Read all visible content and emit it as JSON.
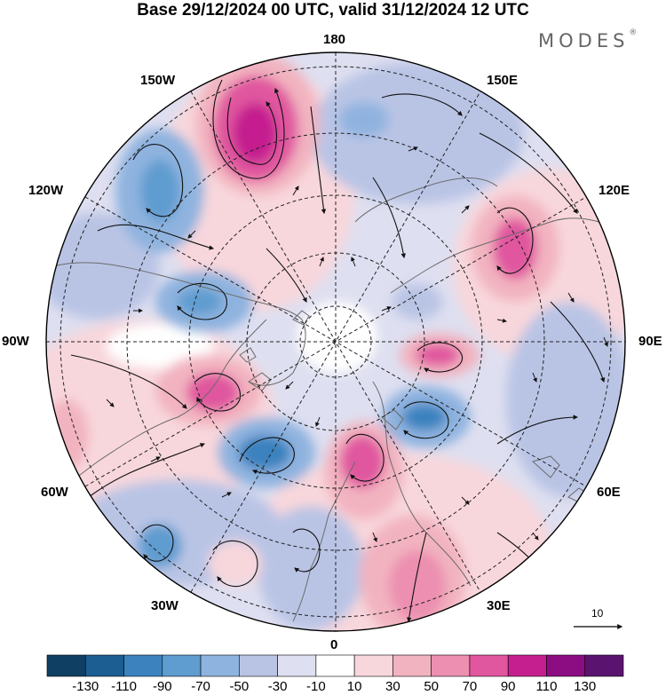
{
  "title": "Base 29/12/2024 00 UTC, valid 31/12/2024 12 UTC",
  "brand": "MODES",
  "brand_mark": "®",
  "longitude_labels": {
    "n180": "180",
    "e150": "150E",
    "e120": "120E",
    "e90": "90E",
    "e60": "60E",
    "e30": "30E",
    "n0": "0",
    "w30": "30W",
    "w60": "60W",
    "w90": "90W",
    "w120": "120W",
    "w150": "150W"
  },
  "wind_scale_label": "10",
  "colorbar": {
    "ticks": [
      "-130",
      "-110",
      "-90",
      "-70",
      "-50",
      "-30",
      "-10",
      "10",
      "30",
      "50",
      "70",
      "90",
      "110",
      "130"
    ],
    "colors": [
      "#0f3f63",
      "#1c5d92",
      "#3b82bf",
      "#5f9cd0",
      "#8fb3df",
      "#b9c4e5",
      "#dedff0",
      "#ffffff",
      "#f8d7dc",
      "#f2b3c0",
      "#ec8fb0",
      "#e0569f",
      "#c51f8f",
      "#8c0d82",
      "#5a1470"
    ]
  },
  "colors": {
    "land_line": "#6b6b6b",
    "grid_line": "#222222",
    "streamline": "#111111"
  },
  "anomaly_centers": [
    {
      "sign": "positive",
      "region": "North Pacific near 165W",
      "peak_class": "90 to 110"
    },
    {
      "sign": "negative",
      "region": "Alaska / Gulf near 125W",
      "peak_class": "-50 to -70"
    },
    {
      "sign": "negative",
      "region": "Beaufort / Canada near 105W",
      "peak_class": "-50 to -70"
    },
    {
      "sign": "positive",
      "region": "Hudson Bay / Labrador near 75W",
      "peak_class": "70 to 90"
    },
    {
      "sign": "negative",
      "region": "North Atlantic near 45W",
      "peak_class": "-70 to -90"
    },
    {
      "sign": "positive",
      "region": "Scandinavia / Barents near 15E",
      "peak_class": "70 to 90"
    },
    {
      "sign": "positive",
      "region": "Eastern Europe near 30E",
      "peak_class": "50 to 70"
    },
    {
      "sign": "negative",
      "region": "Western Siberia near 50E",
      "peak_class": "-70 to -90"
    },
    {
      "sign": "positive",
      "region": "Central Siberia near 90E",
      "peak_class": "70 to 90"
    },
    {
      "sign": "positive",
      "region": "Eastern Siberia near 120E",
      "peak_class": "70 to 90"
    },
    {
      "sign": "negative",
      "region": "Bering Sea near 165E",
      "peak_class": "-50 to -70"
    },
    {
      "sign": "negative",
      "region": "Azores near 30W",
      "peak_class": "-50 to -70"
    }
  ]
}
